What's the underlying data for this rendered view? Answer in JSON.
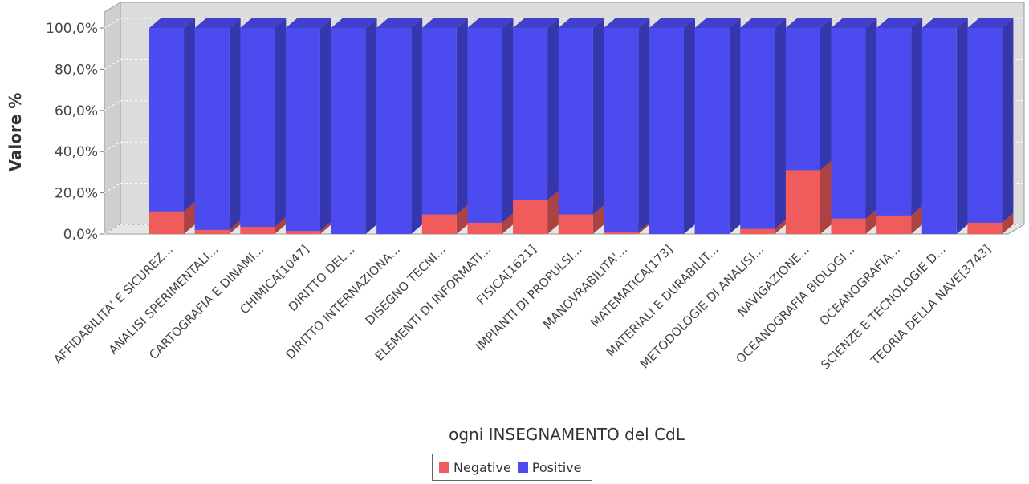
{
  "colors": {
    "negative": "#f05b5b",
    "positive": "#4b4bf0",
    "plot_back": "#dcdcdc",
    "plot_wall": "#cfcfcf",
    "grid": "#ffffff"
  },
  "chart_data": {
    "type": "bar",
    "stacked": true,
    "three_d": true,
    "title": "",
    "xlabel": "ogni INSEGNAMENTO del CdL",
    "ylabel": "Valore %",
    "ylim": [
      0,
      100
    ],
    "ytick_values": [
      0,
      20,
      40,
      60,
      80,
      100
    ],
    "yticks": [
      "0,0%",
      "20,0%",
      "40,0%",
      "60,0%",
      "80,0%",
      "100,0%"
    ],
    "grid": true,
    "legend_position": "bottom-center",
    "categories": [
      "AFFIDABILITA' E SICUREZ...",
      "ANALISI SPERIMENTALI...",
      "CARTOGRAFIA E DINAMI...",
      "CHIMICA[1047]",
      "DIRITTO DEL...",
      "DIRITTO INTERNAZIONA...",
      "DISEGNO TECNI...",
      "ELEMENTI DI INFORMATI...",
      "FISICA[1621]",
      "IMPIANTI DI PROPULSI...",
      "MANOVRABILITA'...",
      "MATEMATICA[173]",
      "MATERIALI E DURABILIT...",
      "METODOLOGIE DI ANALISI...",
      "NAVIGAZIONE...",
      "OCEANOGRAFIA BIOLOGI...",
      "OCEANOGRAFIA...",
      "SCIENZE E TECNOLOGIE D...",
      "TEORIA DELLA NAVE[3743]"
    ],
    "series": [
      {
        "name": "Negative",
        "values": [
          11,
          2,
          3.5,
          1.5,
          0,
          0,
          9.5,
          5.5,
          16.5,
          9.5,
          1,
          0,
          0,
          2.5,
          31,
          7.5,
          9,
          0,
          5.5
        ]
      },
      {
        "name": "Positive",
        "values": [
          89,
          98,
          96.5,
          98.5,
          100,
          100,
          90.5,
          94.5,
          83.5,
          90.5,
          99,
          100,
          100,
          97.5,
          69,
          92.5,
          91,
          100,
          94.5
        ]
      }
    ]
  }
}
